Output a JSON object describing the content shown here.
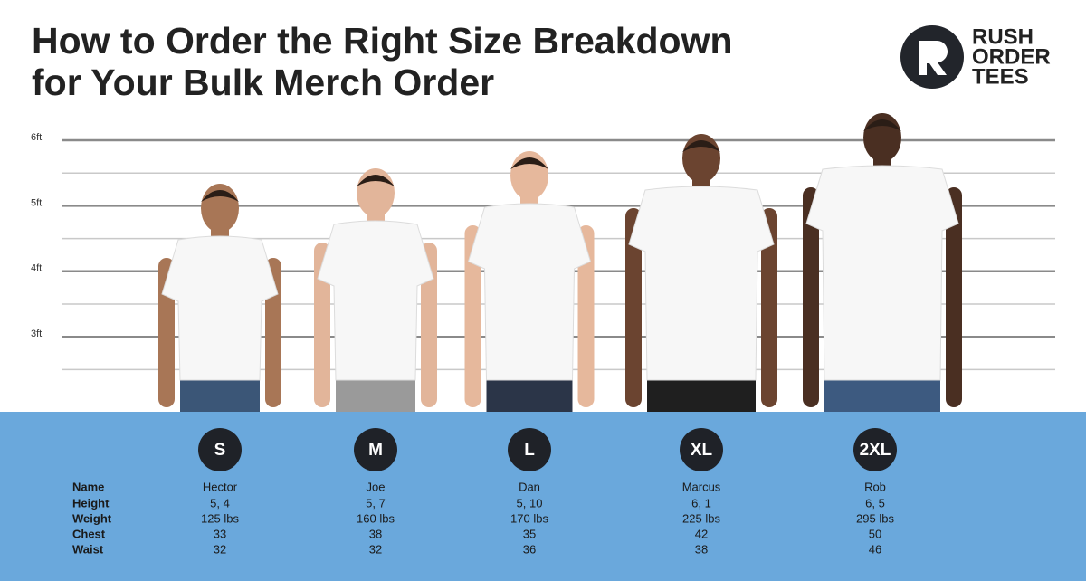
{
  "header": {
    "title_lines": [
      "How to Order the Right Size Breakdown",
      "for Your Bulk Merch Order"
    ],
    "logo": [
      "RUSH",
      "ORDER",
      "TEES"
    ]
  },
  "height_marks": [
    "6ft",
    "5ft",
    "4ft",
    "3ft"
  ],
  "table": {
    "row_labels": [
      "Name",
      "Height",
      "Weight",
      "Chest",
      "Waist"
    ],
    "columns": [
      {
        "size": "S",
        "values": [
          "Hector",
          "5, 4",
          "125 lbs",
          "33",
          "32"
        ]
      },
      {
        "size": "M",
        "values": [
          "Joe",
          "5, 7",
          "160 lbs",
          "38",
          "32"
        ]
      },
      {
        "size": "L",
        "values": [
          "Dan",
          "5, 10",
          "170 lbs",
          "35",
          "36"
        ]
      },
      {
        "size": "XL",
        "values": [
          "Marcus",
          "6, 1",
          "225 lbs",
          "42",
          "38"
        ]
      },
      {
        "size": "2XL",
        "values": [
          "Rob",
          "6, 5",
          "295 lbs",
          "50",
          "46"
        ]
      }
    ]
  }
}
